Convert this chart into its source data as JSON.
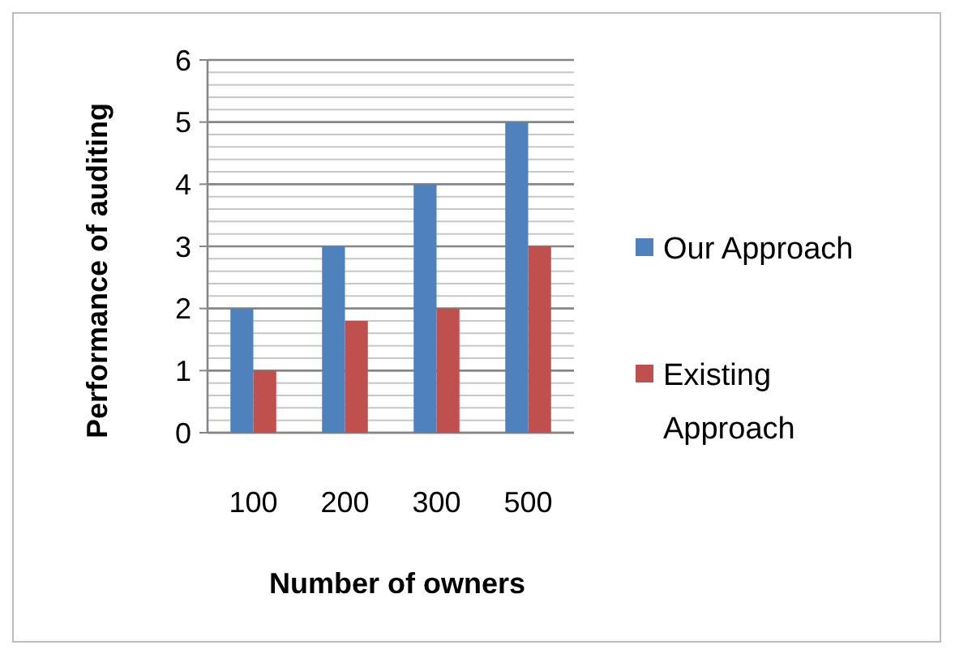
{
  "chart_data": {
    "type": "bar",
    "xlabel": "Number of owners",
    "ylabel": "Performance of auditing",
    "categories": [
      "100",
      "200",
      "300",
      "500"
    ],
    "series": [
      {
        "name": "Our Approach",
        "color": "#4f81bd",
        "values": [
          2,
          3,
          4,
          5
        ]
      },
      {
        "name": "Existing Approach",
        "color": "#c0504d",
        "values": [
          1,
          1.8,
          2,
          3
        ]
      }
    ],
    "ylim": [
      0,
      6
    ],
    "yticks": [
      0,
      1,
      2,
      3,
      4,
      5,
      6
    ],
    "grid": "y",
    "legend": "right"
  }
}
